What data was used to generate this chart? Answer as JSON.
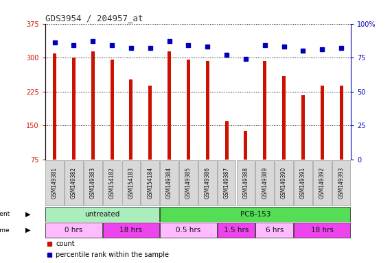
{
  "title": "GDS3954 / 204957_at",
  "samples": [
    "GSM149381",
    "GSM149382",
    "GSM149383",
    "GSM154182",
    "GSM154183",
    "GSM154184",
    "GSM149384",
    "GSM149385",
    "GSM149386",
    "GSM149387",
    "GSM149388",
    "GSM149389",
    "GSM149390",
    "GSM149391",
    "GSM149392",
    "GSM149393"
  ],
  "counts": [
    310,
    300,
    314,
    296,
    252,
    238,
    314,
    295,
    292,
    160,
    138,
    292,
    259,
    217,
    238,
    238
  ],
  "percentile_ranks": [
    86,
    84,
    87,
    84,
    82,
    82,
    87,
    84,
    83,
    77,
    74,
    84,
    83,
    80,
    81,
    82
  ],
  "ylim_left": [
    75,
    375
  ],
  "ylim_right": [
    0,
    100
  ],
  "yticks_left": [
    75,
    150,
    225,
    300,
    375
  ],
  "yticks_right": [
    0,
    25,
    50,
    75,
    100
  ],
  "bar_color": "#cc1100",
  "dot_color": "#0000bb",
  "agent_groups": [
    {
      "label": "untreated",
      "start": 0,
      "end": 6,
      "color": "#aaeebb"
    },
    {
      "label": "PCB-153",
      "start": 6,
      "end": 16,
      "color": "#55dd55"
    }
  ],
  "time_groups": [
    {
      "label": "0 hrs",
      "start": 0,
      "end": 3,
      "color": "#ffbbff"
    },
    {
      "label": "18 hrs",
      "start": 3,
      "end": 6,
      "color": "#ee44ee"
    },
    {
      "label": "0.5 hrs",
      "start": 6,
      "end": 9,
      "color": "#ffbbff"
    },
    {
      "label": "1.5 hrs",
      "start": 9,
      "end": 11,
      "color": "#ee44ee"
    },
    {
      "label": "6 hrs",
      "start": 11,
      "end": 13,
      "color": "#ffbbff"
    },
    {
      "label": "18 hrs",
      "start": 13,
      "end": 16,
      "color": "#ee44ee"
    }
  ],
  "legend_count_color": "#cc1100",
  "legend_dot_color": "#0000bb",
  "bg_color": "#ffffff",
  "grid_color": "#000000",
  "bar_width": 0.18
}
